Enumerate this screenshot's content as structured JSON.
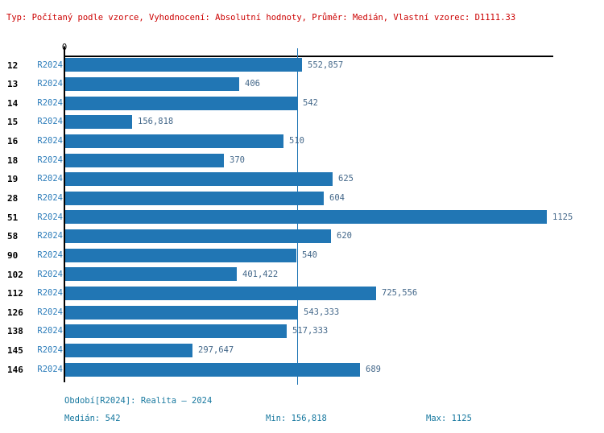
{
  "header": {
    "text": "Typ: Počítaný podle vzorce, Vyhodnocení: Absolutní hodnoty, Průměr: Medián, Vlastní vzorec: D1111.33"
  },
  "chart_data": {
    "type": "bar",
    "orientation": "horizontal",
    "title": "",
    "categories": [
      "12",
      "13",
      "14",
      "15",
      "16",
      "18",
      "19",
      "28",
      "51",
      "58",
      "90",
      "102",
      "112",
      "126",
      "138",
      "145",
      "146"
    ],
    "series": [
      {
        "name": "R2024",
        "values": [
          552.857,
          406,
          542,
          156.818,
          510,
          370,
          625,
          604,
          1125,
          620,
          540,
          401.422,
          725.556,
          543.333,
          517.333,
          297.647,
          689
        ]
      }
    ],
    "value_labels": [
      "552,857",
      "406",
      "542",
      "156,818",
      "510",
      "370",
      "625",
      "604",
      "1125",
      "620",
      "540",
      "401,422",
      "725,556",
      "543,333",
      "517,333",
      "297,647",
      "689"
    ],
    "xlim": [
      0,
      1140
    ],
    "axis_zero_label": "0",
    "median_value": 542,
    "min_value": 156.818,
    "max_value": 1125,
    "grid": false,
    "legend": false
  },
  "footer": {
    "period": "Období[R2024]: Realita – 2024",
    "median": "Medián: 542",
    "min": "Min: 156,818",
    "max": "Max: 1125"
  },
  "colors": {
    "bar": "#2176b4",
    "series_label": "#2b7cba",
    "value_label": "#44688a",
    "category_label": "#000000",
    "header_text": "#cc0000",
    "footer_text": "#17789f",
    "median_line": "#2176b4",
    "axis_line": "#000000"
  }
}
